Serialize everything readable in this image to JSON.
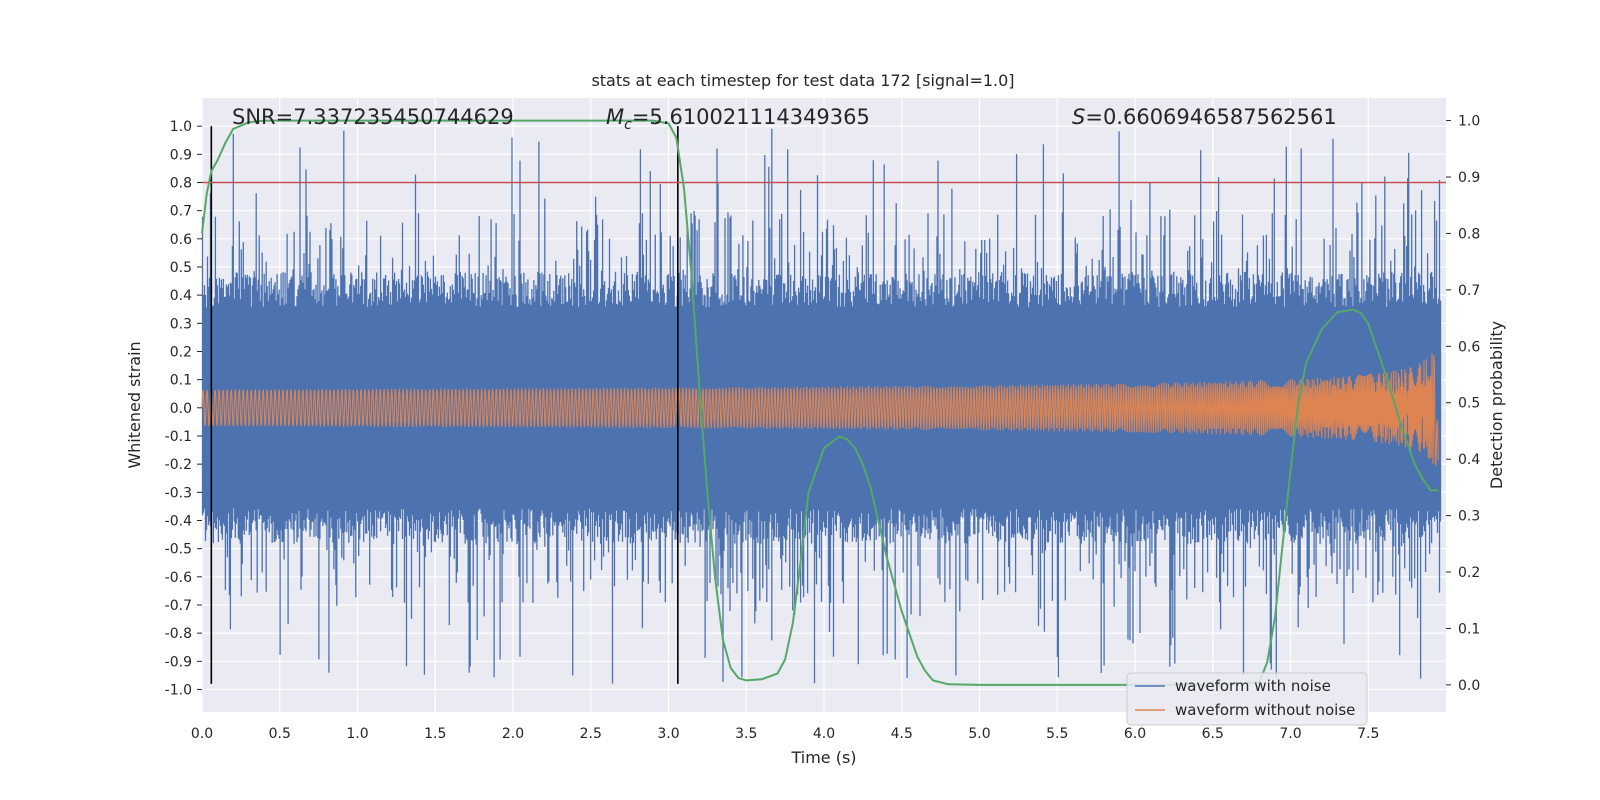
{
  "chart_data": {
    "type": "line",
    "title": "stats at each timestep for test data 172 [signal=1.0]",
    "xlabel": "Time (s)",
    "ylabel": "Whitened strain",
    "y2label": "Detection probability",
    "xlim": [
      0.0,
      8.0
    ],
    "ylim": [
      -1.08,
      1.1
    ],
    "y2lim": [
      -0.048,
      1.04
    ],
    "x_ticks": [
      "0.0",
      "0.5",
      "1.0",
      "1.5",
      "2.0",
      "2.5",
      "3.0",
      "3.5",
      "4.0",
      "4.5",
      "5.0",
      "5.5",
      "6.0",
      "6.5",
      "7.0",
      "7.5"
    ],
    "x_tick_values": [
      0.0,
      0.5,
      1.0,
      1.5,
      2.0,
      2.5,
      3.0,
      3.5,
      4.0,
      4.5,
      5.0,
      5.5,
      6.0,
      6.5,
      7.0,
      7.5
    ],
    "y_ticks": [
      "1.0",
      "0.9",
      "0.8",
      "0.7",
      "0.6",
      "0.5",
      "0.4",
      "0.3",
      "0.2",
      "0.1",
      "0.0",
      "-0.1",
      "-0.2",
      "-0.3",
      "-0.4",
      "-0.5",
      "-0.6",
      "-0.7",
      "-0.8",
      "-0.9",
      "-1.0"
    ],
    "y_tick_values": [
      1.0,
      0.9,
      0.8,
      0.7,
      0.6,
      0.5,
      0.4,
      0.3,
      0.2,
      0.1,
      0.0,
      -0.1,
      -0.2,
      -0.3,
      -0.4,
      -0.5,
      -0.6,
      -0.7,
      -0.8,
      -0.9,
      -1.0
    ],
    "y2_ticks": [
      "1.0",
      "0.9",
      "0.8",
      "0.7",
      "0.6",
      "0.5",
      "0.4",
      "0.3",
      "0.2",
      "0.1",
      "0.0"
    ],
    "y2_tick_values": [
      1.0,
      0.9,
      0.8,
      0.7,
      0.6,
      0.5,
      0.4,
      0.3,
      0.2,
      0.1,
      0.0
    ],
    "annotations": {
      "snr": "SNR=7.337235450744629",
      "mc_symbol": "M",
      "mc_subscript": "c",
      "mc_value": "=5.610021114349365",
      "s_symbol": "S",
      "s_value": "=0.6606946587562561"
    },
    "threshold": {
      "y": 0.8,
      "color": "#c44e52"
    },
    "vertical_markers": [
      0.06,
      3.06
    ],
    "series": [
      {
        "name": "waveform with noise",
        "color": "#4c72b0",
        "description_values": "dense noise, envelope about ±0.4 with peaks near ±1.0",
        "envelope_upper": 0.42,
        "envelope_lower": -0.42,
        "peak_max": 1.0,
        "peak_min": -0.98
      },
      {
        "name": "waveform without noise",
        "color": "#dd8452",
        "chirp_start_amplitude": 0.012,
        "chirp_end_amplitude": 0.25,
        "chirp_end_time": 7.95
      },
      {
        "name": "detection probability",
        "color": "#55a868",
        "axis": "y2",
        "x": [
          0.0,
          0.03,
          0.06,
          0.1,
          0.15,
          0.2,
          0.3,
          0.4,
          0.6,
          1.0,
          2.0,
          2.5,
          2.9,
          3.0,
          3.05,
          3.1,
          3.15,
          3.2,
          3.25,
          3.3,
          3.35,
          3.4,
          3.45,
          3.5,
          3.6,
          3.7,
          3.75,
          3.8,
          3.85,
          3.9,
          4.0,
          4.1,
          4.15,
          4.2,
          4.25,
          4.3,
          4.4,
          4.5,
          4.6,
          4.65,
          4.7,
          4.8,
          5.0,
          5.5,
          6.0,
          6.5,
          6.8,
          6.85,
          6.9,
          6.95,
          7.0,
          7.05,
          7.1,
          7.2,
          7.3,
          7.4,
          7.45,
          7.5,
          7.6,
          7.7,
          7.75,
          7.8,
          7.85,
          7.9,
          7.95
        ],
        "y": [
          0.8,
          0.87,
          0.91,
          0.93,
          0.96,
          0.985,
          0.997,
          1.0,
          1.0,
          1.0,
          1.0,
          1.0,
          1.0,
          0.995,
          0.97,
          0.88,
          0.72,
          0.52,
          0.34,
          0.19,
          0.08,
          0.03,
          0.012,
          0.008,
          0.01,
          0.02,
          0.045,
          0.11,
          0.22,
          0.34,
          0.42,
          0.44,
          0.435,
          0.42,
          0.39,
          0.35,
          0.23,
          0.13,
          0.05,
          0.025,
          0.008,
          0.001,
          0.0,
          0.0,
          0.0,
          0.0,
          0.005,
          0.04,
          0.12,
          0.25,
          0.38,
          0.5,
          0.57,
          0.63,
          0.66,
          0.665,
          0.66,
          0.64,
          0.56,
          0.47,
          0.43,
          0.39,
          0.365,
          0.345,
          0.345
        ]
      }
    ],
    "legend": {
      "placement": "lower-right",
      "entries": [
        {
          "label": "waveform with noise",
          "color": "#4c72b0"
        },
        {
          "label": "waveform without noise",
          "color": "#dd8452"
        }
      ]
    },
    "background": "#eaeaf2",
    "grid": true
  }
}
